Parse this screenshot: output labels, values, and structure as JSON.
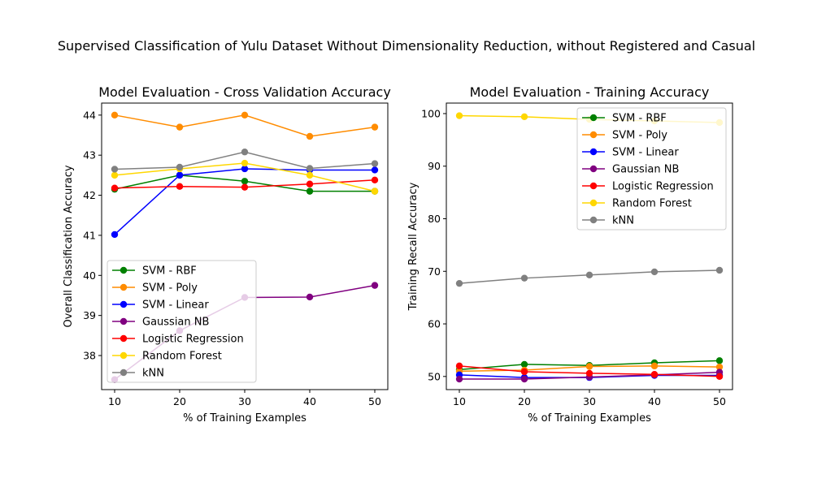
{
  "figure": {
    "title": "Supervised Classification of Yulu Dataset Without Dimensionality Reduction, without Registered and Casual"
  },
  "chart_data": [
    {
      "type": "line",
      "title": "Model Evaluation - Cross Validation Accuracy",
      "xlabel": "% of Training Examples",
      "ylabel": "Overall Classification Accuracy",
      "x": [
        10,
        20,
        30,
        40,
        50
      ],
      "xticks": [
        "10",
        "20",
        "30",
        "40",
        "50"
      ],
      "yticks": [
        "38",
        "39",
        "40",
        "41",
        "42",
        "43",
        "44"
      ],
      "xlim": [
        8,
        52
      ],
      "ylim": [
        37.15,
        44.3
      ],
      "legend_position": "lower-left",
      "series": [
        {
          "name": "SVM - RBF",
          "color": "#008000",
          "values": [
            42.15,
            42.5,
            42.35,
            42.1,
            42.1
          ]
        },
        {
          "name": "SVM - Poly",
          "color": "#ff8c00",
          "values": [
            44.0,
            43.7,
            44.0,
            43.47,
            43.7
          ]
        },
        {
          "name": "SVM - Linear",
          "color": "#0000ff",
          "values": [
            41.02,
            42.5,
            42.66,
            42.63,
            42.63
          ]
        },
        {
          "name": "Gaussian NB",
          "color": "#800080",
          "values": [
            37.4,
            38.62,
            39.45,
            39.46,
            39.75
          ]
        },
        {
          "name": "Logistic Regression",
          "color": "#ff0000",
          "values": [
            42.18,
            42.22,
            42.2,
            42.28,
            42.38
          ]
        },
        {
          "name": "Random Forest",
          "color": "#ffd700",
          "values": [
            42.5,
            42.66,
            42.8,
            42.5,
            42.1
          ]
        },
        {
          "name": "kNN",
          "color": "#808080",
          "values": [
            42.65,
            42.7,
            43.08,
            42.67,
            42.79
          ]
        }
      ]
    },
    {
      "type": "line",
      "title": "Model Evaluation - Training Accuracy",
      "xlabel": "% of Training Examples",
      "ylabel": "Training Recall Accuracy",
      "x": [
        10,
        20,
        30,
        40,
        50
      ],
      "xticks": [
        "10",
        "20",
        "30",
        "40",
        "50"
      ],
      "yticks": [
        "50",
        "60",
        "70",
        "80",
        "90",
        "100"
      ],
      "xlim": [
        8,
        52
      ],
      "ylim": [
        47.5,
        102.0
      ],
      "legend_position": "upper-right",
      "series": [
        {
          "name": "SVM - RBF",
          "color": "#008000",
          "values": [
            51.3,
            52.3,
            52.1,
            52.6,
            53.0
          ]
        },
        {
          "name": "SVM - Poly",
          "color": "#ff8c00",
          "values": [
            51.0,
            51.2,
            51.9,
            52.0,
            51.8
          ]
        },
        {
          "name": "SVM - Linear",
          "color": "#0000ff",
          "values": [
            50.3,
            49.8,
            49.8,
            50.2,
            50.2
          ]
        },
        {
          "name": "Gaussian NB",
          "color": "#800080",
          "values": [
            49.5,
            49.5,
            49.9,
            50.3,
            50.8
          ]
        },
        {
          "name": "Logistic Regression",
          "color": "#ff0000",
          "values": [
            52.0,
            50.9,
            50.6,
            50.4,
            50.0
          ]
        },
        {
          "name": "Random Forest",
          "color": "#ffd700",
          "values": [
            99.6,
            99.4,
            98.9,
            98.6,
            98.3
          ]
        },
        {
          "name": "kNN",
          "color": "#808080",
          "values": [
            67.7,
            68.7,
            69.3,
            69.9,
            70.2
          ]
        }
      ]
    }
  ]
}
